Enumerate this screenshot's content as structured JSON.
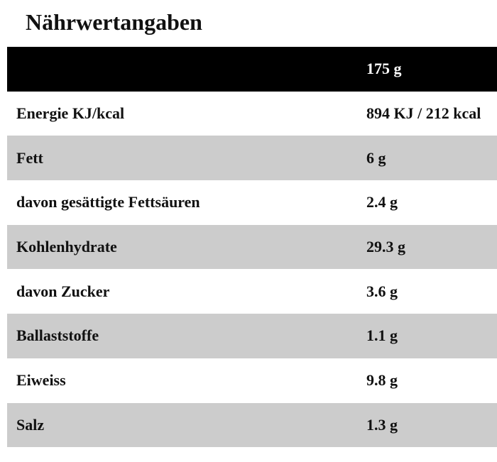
{
  "header": {
    "title": "Nährwertangaben"
  },
  "table": {
    "columns": [
      "",
      "175 g"
    ],
    "rows": [
      [
        "Energie KJ/kcal",
        "894 KJ / 212 kcal"
      ],
      [
        "Fett",
        "6 g"
      ],
      [
        "davon gesättigte Fettsäuren",
        "2.4 g"
      ],
      [
        "Kohlenhydrate",
        "29.3 g"
      ],
      [
        "davon Zucker",
        "3.6 g"
      ],
      [
        "Ballaststoffe",
        "1.1 g"
      ],
      [
        "Eiweiss",
        "9.8 g"
      ],
      [
        "Salz",
        "1.3 g"
      ]
    ]
  }
}
